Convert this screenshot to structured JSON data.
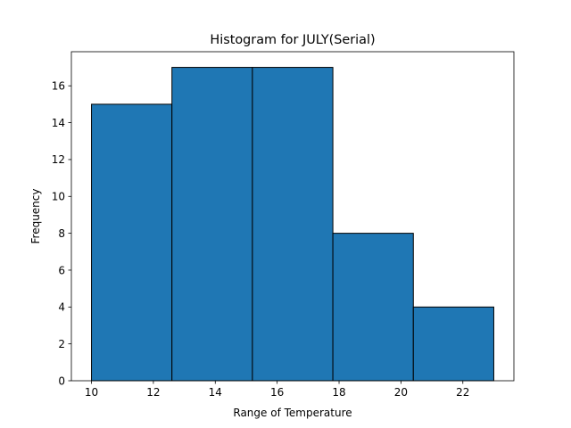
{
  "chart_data": {
    "type": "bar",
    "title": "Histogram for JULY(Serial)",
    "xlabel": "Range of Temperature",
    "ylabel": "Frequency",
    "bins": [
      {
        "start": 10.0,
        "end": 12.6,
        "count": 15
      },
      {
        "start": 12.6,
        "end": 15.2,
        "count": 17
      },
      {
        "start": 15.2,
        "end": 17.8,
        "count": 17
      },
      {
        "start": 17.8,
        "end": 20.4,
        "count": 8
      },
      {
        "start": 20.4,
        "end": 23.0,
        "count": 4
      }
    ],
    "xlim": [
      9.35,
      23.65
    ],
    "ylim": [
      0,
      17.85
    ],
    "xticks": [
      10,
      12,
      14,
      16,
      18,
      20,
      22
    ],
    "yticks": [
      0,
      2,
      4,
      6,
      8,
      10,
      12,
      14,
      16
    ],
    "grid": false,
    "legend": false,
    "bar_color": "#1f77b4",
    "edge_color": "#000000"
  }
}
